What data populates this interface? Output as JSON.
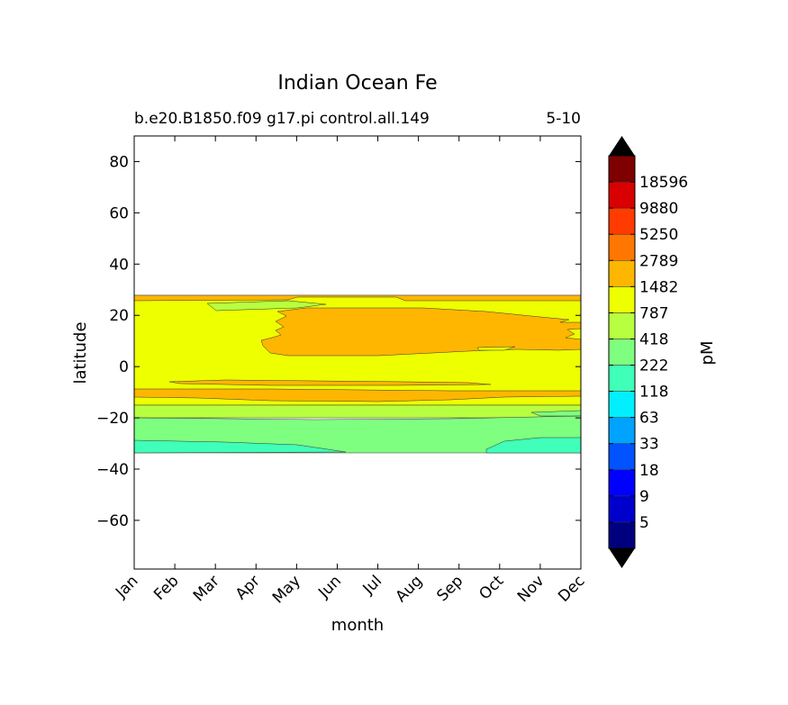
{
  "chart_data": {
    "type": "contour",
    "title": "Indian Ocean Fe",
    "subtitle_left": "b.e20.B1850.f09 g17.pi control.all.149",
    "subtitle_right": "5-10",
    "xlabel": "month",
    "ylabel": "latitude",
    "colorbar_label": "pM",
    "x_categories": [
      "Jan",
      "Feb",
      "Mar",
      "Apr",
      "May",
      "Jun",
      "Jul",
      "Aug",
      "Sep",
      "Oct",
      "Nov",
      "Dec"
    ],
    "ylim": [
      -79,
      90
    ],
    "y_ticks": [
      80,
      60,
      40,
      20,
      0,
      -20,
      -40,
      -60
    ],
    "data_extent": {
      "lat_min": -34,
      "lat_max": 27
    },
    "levels": [
      5,
      9,
      18,
      33,
      63,
      118,
      222,
      418,
      787,
      1482,
      2789,
      5250,
      9880,
      18596
    ],
    "colormap": [
      "#00007f",
      "#0000cd",
      "#0000ff",
      "#0053ff",
      "#00a3ff",
      "#00f0ff",
      "#40ffb8",
      "#7fff7f",
      "#b8ff40",
      "#eeff00",
      "#ffb600",
      "#ff7700",
      "#ff3b00",
      "#d80000",
      "#7f0000"
    ],
    "extend_colors": {
      "over": "#000000",
      "under": "#000000"
    },
    "bands": [
      {
        "lat_from": 25.5,
        "lat_to": 27,
        "range": "1482-2789",
        "color": "#ffb600"
      },
      {
        "lat_from": 8,
        "lat_to": 22,
        "range": "1482-2789",
        "color": "#ffb600",
        "months": "May-Dec"
      },
      {
        "lat_from": -14,
        "lat_to": -9,
        "range": "1482-2789",
        "color": "#ffb600"
      },
      {
        "lat_from": -20,
        "lat_to": -15,
        "range": "418-787",
        "color": "#b8ff40"
      },
      {
        "lat_from": -34,
        "lat_to": -20,
        "range": "222-418",
        "color": "#7fff7f"
      },
      {
        "lat_from": -34,
        "lat_to": -30,
        "range": "118-222",
        "color": "#40ffb8"
      }
    ]
  }
}
